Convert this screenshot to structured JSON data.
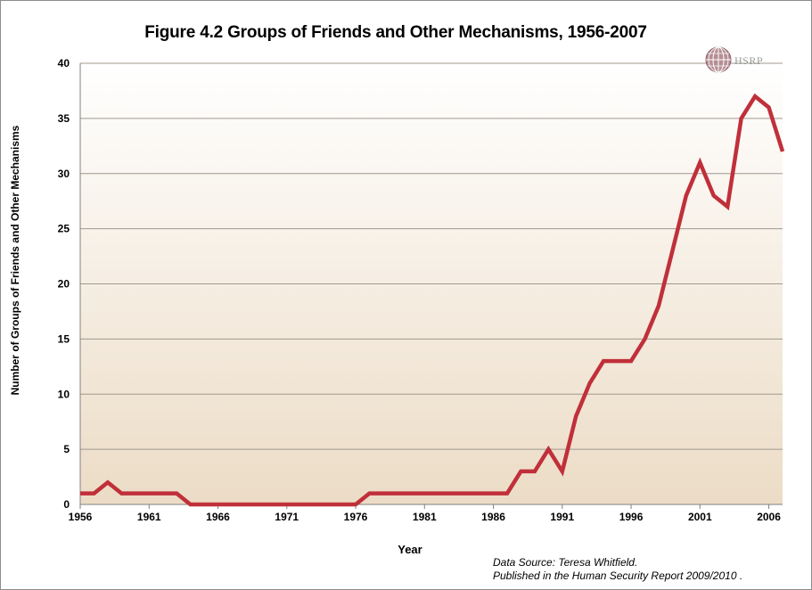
{
  "chart_data": {
    "type": "line",
    "title": "Figure 4.2 Groups of Friends and Other Mechanisms, 1956-2007",
    "xlabel": "Year",
    "ylabel": "Number of Groups of Friends and Other Mechanisms",
    "xlim": [
      1956,
      2007
    ],
    "ylim": [
      0,
      40
    ],
    "x_ticks": [
      1956,
      1961,
      1966,
      1971,
      1976,
      1981,
      1986,
      1991,
      1996,
      2001,
      2006
    ],
    "y_ticks": [
      0,
      5,
      10,
      15,
      20,
      25,
      30,
      35,
      40
    ],
    "grid": "horizontal",
    "legend": "none",
    "series": [
      {
        "color": "#c0303a",
        "x": [
          1956,
          1957,
          1958,
          1959,
          1960,
          1961,
          1962,
          1963,
          1964,
          1965,
          1966,
          1967,
          1968,
          1969,
          1970,
          1971,
          1972,
          1973,
          1974,
          1975,
          1976,
          1977,
          1978,
          1979,
          1980,
          1981,
          1982,
          1983,
          1984,
          1985,
          1986,
          1987,
          1988,
          1989,
          1990,
          1991,
          1992,
          1993,
          1994,
          1995,
          1996,
          1997,
          1998,
          1999,
          2000,
          2001,
          2002,
          2003,
          2004,
          2005,
          2006,
          2007
        ],
        "y": [
          1,
          1,
          2,
          1,
          1,
          1,
          1,
          1,
          0,
          0,
          0,
          0,
          0,
          0,
          0,
          0,
          0,
          0,
          0,
          0,
          0,
          1,
          1,
          1,
          1,
          1,
          1,
          1,
          1,
          1,
          1,
          1,
          3,
          3,
          5,
          3,
          8,
          11,
          13,
          13,
          13,
          15,
          18,
          23,
          28,
          31,
          28,
          27,
          35,
          37,
          36,
          32
        ]
      }
    ]
  },
  "logo": {
    "text": "HSRP"
  },
  "source": {
    "line1": "Data Source: Teresa Whitfield.",
    "line2": "Published in the Human Security Report 2009/2010 ."
  }
}
